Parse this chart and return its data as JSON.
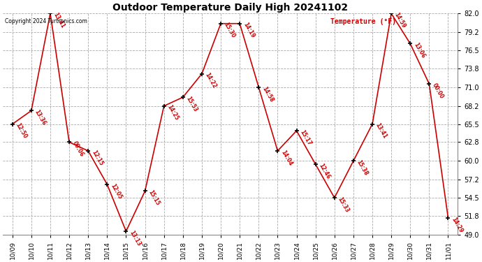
{
  "title": "Outdoor Temperature Daily High 20241102",
  "copyright": "Copyright 2024 Turtronics.com",
  "ylabel": "Temperature (°F)",
  "background_color": "#ffffff",
  "line_color": "#cc0000",
  "grid_color": "#aaaaaa",
  "ylim": [
    49.0,
    82.0
  ],
  "yticks": [
    49.0,
    51.8,
    54.5,
    57.2,
    60.0,
    62.8,
    65.5,
    68.2,
    71.0,
    73.8,
    76.5,
    79.2,
    82.0
  ],
  "dates": [
    "10/09",
    "10/10",
    "10/11",
    "10/12",
    "10/13",
    "10/14",
    "10/15",
    "10/16",
    "10/17",
    "10/18",
    "10/19",
    "10/20",
    "10/21",
    "10/22",
    "10/23",
    "10/24",
    "10/25",
    "10/26",
    "10/27",
    "10/28",
    "10/29",
    "10/30",
    "10/31",
    "11/01"
  ],
  "temps": [
    65.5,
    67.5,
    82.0,
    62.8,
    61.5,
    56.5,
    49.5,
    55.5,
    68.2,
    69.5,
    73.0,
    80.5,
    80.5,
    71.0,
    61.5,
    64.5,
    59.5,
    54.5,
    60.0,
    65.5,
    82.0,
    77.5,
    71.5,
    51.5
  ],
  "labels": [
    "12:50",
    "13:36",
    "13:41",
    "00:06",
    "12:15",
    "12:05",
    "13:13",
    "15:15",
    "14:25",
    "15:53",
    "14:22",
    "15:30",
    "14:19",
    "14:58",
    "14:04",
    "15:17",
    "12:46",
    "15:33",
    "15:38",
    "13:41",
    "14:59",
    "13:06",
    "00:00",
    "14:29"
  ]
}
